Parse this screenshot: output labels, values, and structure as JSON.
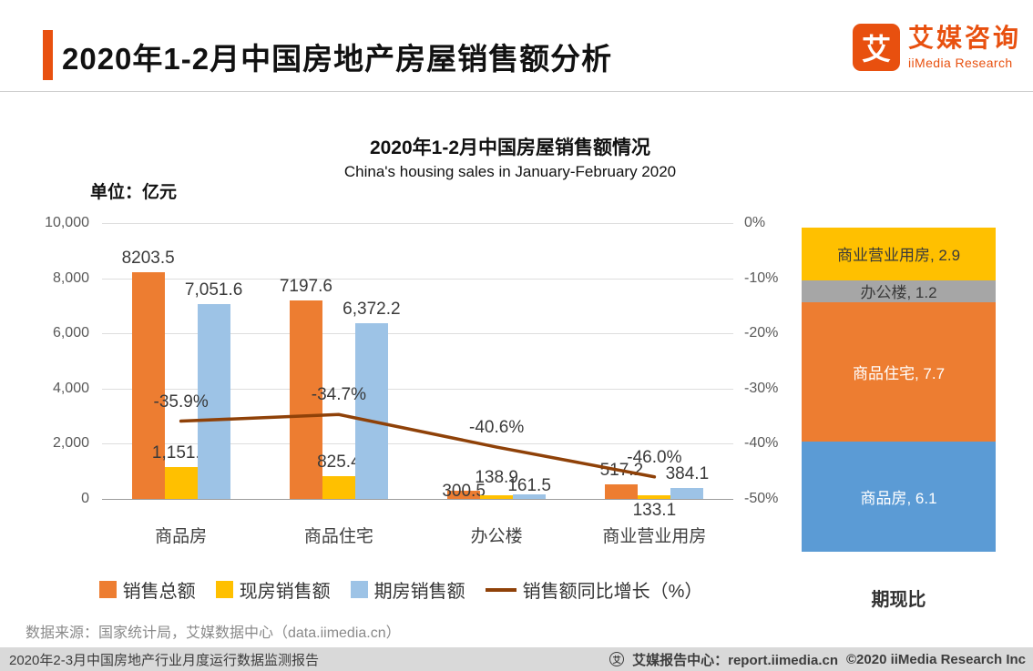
{
  "colors": {
    "accent": "#E8500F"
  },
  "header": {
    "title": "2020年1-2月中国房地产房屋销售额分析",
    "logo": {
      "glyph": "艾",
      "brand": "艾媒咨询",
      "sub": "iiMedia Research"
    }
  },
  "chart_data": [
    {
      "type": "bar",
      "title": "2020年1-2月中国房屋销售额情况",
      "subtitle": "China's housing sales in January-February 2020",
      "unit_label": "单位：亿元",
      "categories": [
        "商品房",
        "商品住宅",
        "办公楼",
        "商业营业用房"
      ],
      "series": [
        {
          "name": "销售总额",
          "color": "#ED7D31",
          "values": [
            8203.5,
            7197.6,
            300.5,
            517.2
          ],
          "labels": [
            "8203.5",
            "7197.6",
            "300.5",
            "517.2"
          ]
        },
        {
          "name": "现房销售额",
          "color": "#FFC000",
          "values": [
            1151.8,
            825.4,
            138.9,
            133.1
          ],
          "labels": [
            "1,151.8",
            "825.4",
            "138.9",
            "133.1"
          ]
        },
        {
          "name": "期房销售额",
          "color": "#9DC3E6",
          "values": [
            7051.6,
            6372.2,
            161.5,
            384.1
          ],
          "labels": [
            "7,051.6",
            "6,372.2",
            "161.5",
            "384.1"
          ]
        }
      ],
      "line_series": {
        "name": "销售额同比增长（%）",
        "color": "#8F4108",
        "values": [
          -35.9,
          -34.7,
          -40.6,
          -46.0
        ],
        "labels": [
          "-35.9%",
          "-34.7%",
          "-40.6%",
          "-46.0%"
        ]
      },
      "y_axis_left": {
        "min": 0,
        "max": 10000,
        "ticks": [
          "10,000",
          "8,000",
          "6,000",
          "4,000",
          "2,000",
          "0"
        ]
      },
      "y_axis_right": {
        "min": -50,
        "max": 0,
        "ticks": [
          "0%",
          "-10%",
          "-20%",
          "-30%",
          "-40%",
          "-50%"
        ]
      },
      "grid": true,
      "legend_position": "bottom"
    },
    {
      "type": "stacked-bar",
      "title": "期现比",
      "segments": [
        {
          "name": "商业营业用房",
          "label": "商业营业用房, 2.9",
          "value": 2.9,
          "color": "#FFC000",
          "text_color": "#3a3a3a"
        },
        {
          "name": "办公楼",
          "label": "办公楼, 1.2",
          "value": 1.2,
          "color": "#A6A6A6",
          "text_color": "#3a3a3a"
        },
        {
          "name": "商品住宅",
          "label": "商品住宅, 7.7",
          "value": 7.7,
          "color": "#ED7D31",
          "text_color": "#ffffff"
        },
        {
          "name": "商品房",
          "label": "商品房, 6.1",
          "value": 6.1,
          "color": "#5B9BD5",
          "text_color": "#ffffff"
        }
      ]
    }
  ],
  "legend": {
    "items": [
      {
        "label": "销售总额",
        "color": "#ED7D31",
        "swatch": "square"
      },
      {
        "label": "现房销售额",
        "color": "#FFC000",
        "swatch": "square"
      },
      {
        "label": "期房销售额",
        "color": "#9DC3E6",
        "swatch": "square"
      },
      {
        "label": "销售额同比增长（%）",
        "color": "#8F4108",
        "swatch": "line"
      }
    ]
  },
  "source": "数据来源：国家统计局，艾媒数据中心（data.iimedia.cn）",
  "footer": {
    "left": "2020年2-3月中国房地产行业月度运行数据监测报告",
    "icon_glyph": "艾",
    "report_center": "艾媒报告中心：report.iimedia.cn",
    "copyright": "©2020   iiMedia Research Inc"
  }
}
